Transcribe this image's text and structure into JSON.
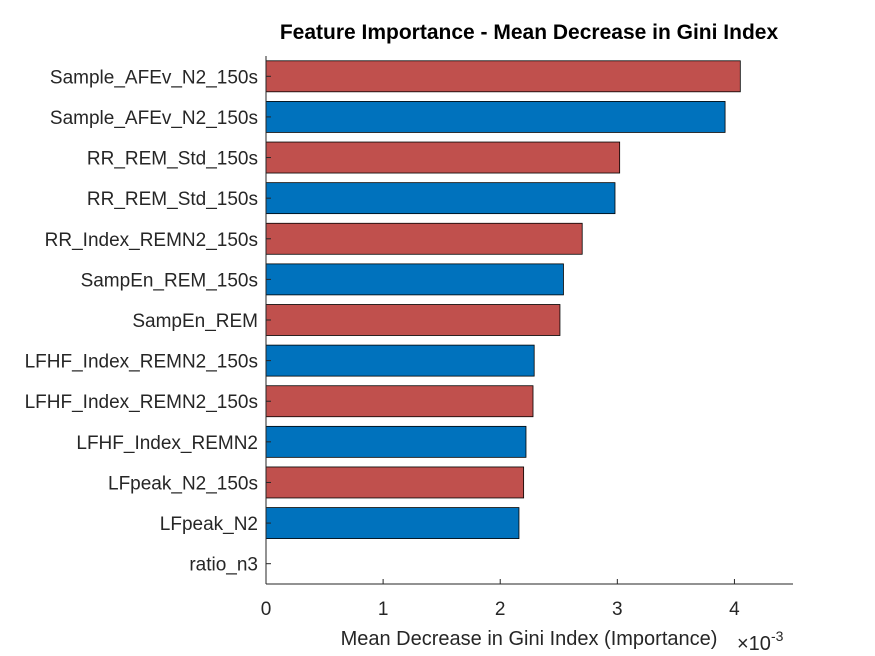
{
  "chart_data": {
    "type": "bar",
    "orientation": "horizontal",
    "title": "Feature Importance - Mean Decrease in Gini Index",
    "xlabel": "Mean Decrease in Gini Index (Importance)",
    "ylabel": "",
    "x_multiplier": {
      "base": "×10",
      "exponent": "-3"
    },
    "xlim": [
      0,
      4.5
    ],
    "xticks": [
      "0",
      "1",
      "2",
      "3",
      "4"
    ],
    "grid": false,
    "categories": [
      "Sample_AFEv_N2_150s",
      "Sample_AFEv_N2_150s",
      "RR_REM_Std_150s",
      "RR_REM_Std_150s",
      "RR_Index_REMN2_150s",
      "SampEn_REM_150s",
      "SampEn_REM",
      "LFHF_Index_REMN2_150s",
      "LFHF_Index_REMN2_150s",
      "LFHF_Index_REMN2",
      "LFpeak_N2_150s",
      "LFpeak_N2",
      "ratio_n3"
    ],
    "values": [
      4.05,
      3.92,
      3.02,
      2.98,
      2.7,
      2.54,
      2.51,
      2.29,
      2.28,
      2.22,
      2.2,
      2.16,
      0
    ],
    "bar_colors": [
      "#c0504d",
      "#0072bd",
      "#c0504d",
      "#0072bd",
      "#c0504d",
      "#0072bd",
      "#c0504d",
      "#0072bd",
      "#c0504d",
      "#0072bd",
      "#c0504d",
      "#0072bd",
      "#0072bd"
    ]
  }
}
